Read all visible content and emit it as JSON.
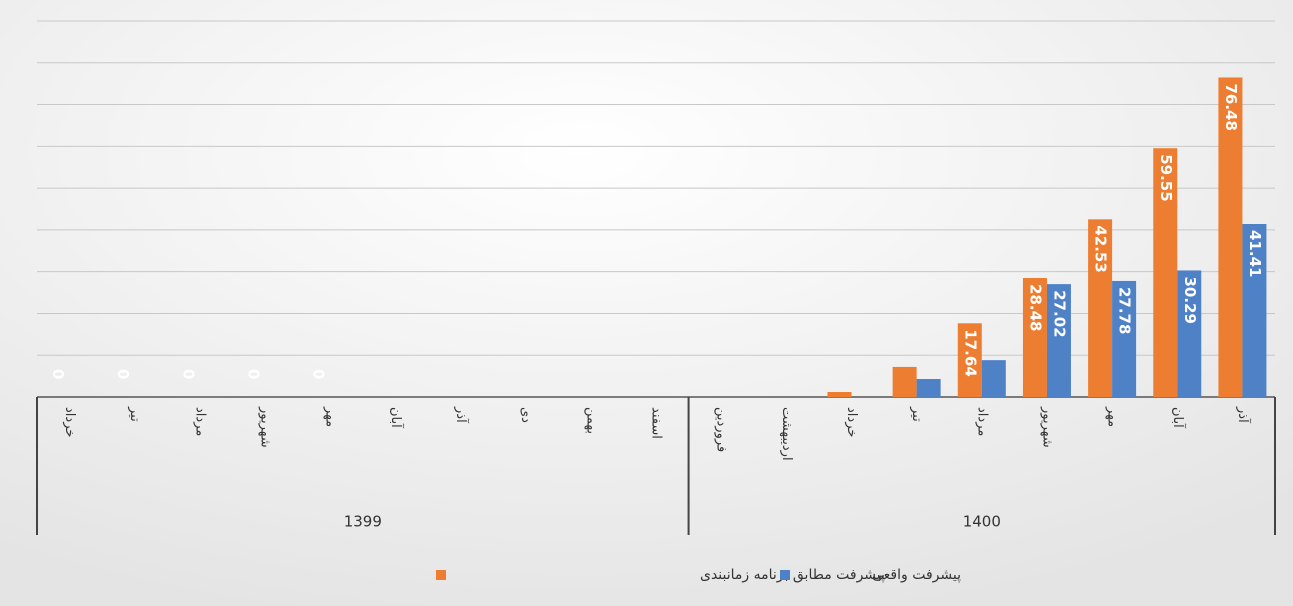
{
  "chart_data": {
    "type": "bar",
    "groups": [
      {
        "name": "1399",
        "categories": [
          "خرداد",
          "تیر",
          "مرداد",
          "شهریور",
          "مهر",
          "آبان",
          "آذر",
          "دی",
          "بهمن",
          "اسفند"
        ]
      },
      {
        "name": "1400",
        "categories": [
          "فروردین",
          "اردیبهشت",
          "خرداد",
          "تیر",
          "مرداد",
          "شهریور",
          "مهر",
          "آبان",
          "آذر"
        ]
      }
    ],
    "series": [
      {
        "name": "پیشرفت مطابق برنامه زمانبندی",
        "color": "#ed7d31",
        "values": [
          0,
          0,
          0,
          0,
          0,
          null,
          null,
          null,
          null,
          null,
          null,
          null,
          1.2,
          7.2,
          17.64,
          28.48,
          42.53,
          59.55,
          76.48
        ],
        "value_labels": [
          "0",
          "0",
          "0",
          "0",
          "0",
          null,
          null,
          null,
          null,
          null,
          null,
          null,
          null,
          null,
          "17.64",
          "28.48",
          "42.53",
          "59.55",
          "76.48"
        ]
      },
      {
        "name": "پیشرفت واقعی",
        "color": "#4f81c7",
        "values": [
          0,
          0,
          0,
          0,
          0,
          null,
          null,
          null,
          null,
          null,
          null,
          null,
          null,
          4.3,
          8.82,
          27.02,
          27.78,
          30.29,
          41.41
        ],
        "value_labels": [
          null,
          null,
          null,
          null,
          null,
          null,
          null,
          null,
          null,
          null,
          null,
          null,
          null,
          null,
          null,
          "27.02",
          "27.78",
          "30.29",
          "41.41"
        ]
      }
    ],
    "ylim": [
      0,
      90
    ],
    "yticks": [
      0,
      10,
      20,
      30,
      40,
      50,
      60,
      70,
      80,
      90
    ],
    "grid": true
  }
}
